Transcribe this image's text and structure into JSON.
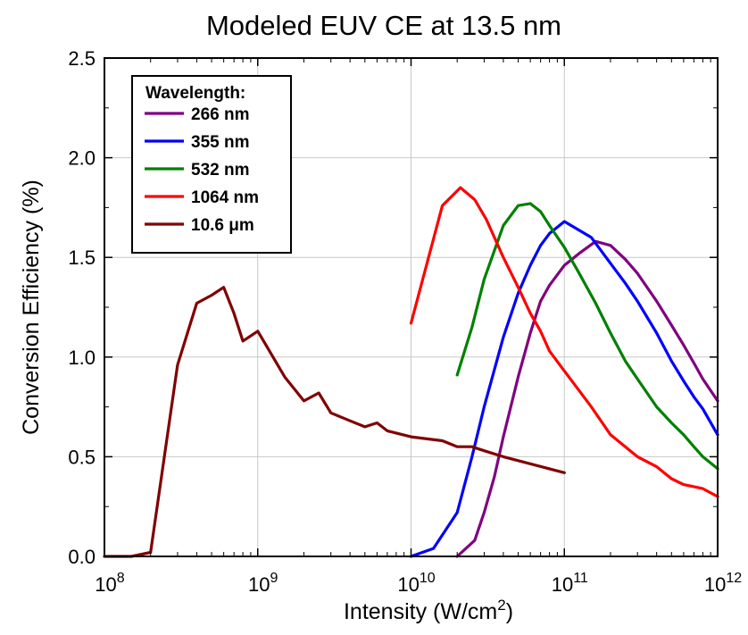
{
  "chart_data": {
    "type": "line",
    "title": "Modeled EUV CE at 13.5 nm",
    "xlabel": "Intensity (W/cm",
    "xlabel_sup": "2",
    "xlabel_end": ")",
    "ylabel": "Conversion Efficiency (%)",
    "x_scale": "log",
    "xlim": [
      100000000.0,
      1000000000000.0
    ],
    "ylim": [
      0.0,
      2.5
    ],
    "grid": true,
    "x_ticks": [
      {
        "base": "10",
        "exp": "8"
      },
      {
        "base": "10",
        "exp": "9"
      },
      {
        "base": "10",
        "exp": "10"
      },
      {
        "base": "10",
        "exp": "11"
      },
      {
        "base": "10",
        "exp": "12"
      }
    ],
    "y_ticks": [
      "0.0",
      "0.5",
      "1.0",
      "1.5",
      "2.0",
      "2.5"
    ],
    "legend": {
      "title": "Wavelength:",
      "placement": "top-left"
    },
    "series": [
      {
        "name": "266 nm",
        "color": "#800080",
        "x": [
          20000000000.0,
          26000000000.0,
          30000000000.0,
          35000000000.0,
          40000000000.0,
          50000000000.0,
          60000000000.0,
          70000000000.0,
          80000000000.0,
          100000000000.0,
          125000000000.0,
          160000000000.0,
          200000000000.0,
          250000000000.0,
          300000000000.0,
          400000000000.0,
          500000000000.0,
          600000000000.0,
          700000000000.0,
          800000000000.0,
          1000000000000.0
        ],
        "y": [
          0.0,
          0.08,
          0.22,
          0.4,
          0.6,
          0.9,
          1.12,
          1.28,
          1.36,
          1.46,
          1.52,
          1.58,
          1.56,
          1.49,
          1.42,
          1.28,
          1.16,
          1.06,
          0.97,
          0.89,
          0.78
        ]
      },
      {
        "name": "355 nm",
        "color": "#0000ff",
        "x": [
          10000000000.0,
          14000000000.0,
          20000000000.0,
          25000000000.0,
          30000000000.0,
          40000000000.0,
          50000000000.0,
          60000000000.0,
          70000000000.0,
          80000000000.0,
          100000000000.0,
          150000000000.0,
          200000000000.0,
          250000000000.0,
          300000000000.0,
          400000000000.0,
          500000000000.0,
          600000000000.0,
          700000000000.0,
          800000000000.0,
          1000000000000.0
        ],
        "y": [
          0.0,
          0.04,
          0.22,
          0.5,
          0.75,
          1.1,
          1.32,
          1.46,
          1.56,
          1.62,
          1.68,
          1.6,
          1.47,
          1.37,
          1.28,
          1.12,
          0.98,
          0.88,
          0.8,
          0.74,
          0.61
        ]
      },
      {
        "name": "532 nm",
        "color": "#008000",
        "x": [
          20000000000.0,
          25000000000.0,
          30000000000.0,
          40000000000.0,
          50000000000.0,
          60000000000.0,
          70000000000.0,
          80000000000.0,
          100000000000.0,
          125000000000.0,
          160000000000.0,
          200000000000.0,
          250000000000.0,
          300000000000.0,
          400000000000.0,
          500000000000.0,
          600000000000.0,
          700000000000.0,
          800000000000.0,
          1000000000000.0
        ],
        "y": [
          0.91,
          1.15,
          1.39,
          1.66,
          1.76,
          1.77,
          1.73,
          1.66,
          1.55,
          1.42,
          1.27,
          1.12,
          0.98,
          0.89,
          0.75,
          0.67,
          0.61,
          0.55,
          0.5,
          0.44
        ]
      },
      {
        "name": "1064 nm",
        "color": "#ff0000",
        "x": [
          10000000000.0,
          16000000000.0,
          21000000000.0,
          26000000000.0,
          31000000000.0,
          40000000000.0,
          50000000000.0,
          60000000000.0,
          70000000000.0,
          80000000000.0,
          100000000000.0,
          150000000000.0,
          200000000000.0,
          300000000000.0,
          400000000000.0,
          500000000000.0,
          600000000000.0,
          700000000000.0,
          800000000000.0,
          1000000000000.0
        ],
        "y": [
          1.17,
          1.76,
          1.85,
          1.79,
          1.69,
          1.5,
          1.35,
          1.22,
          1.13,
          1.03,
          0.93,
          0.75,
          0.61,
          0.5,
          0.45,
          0.39,
          0.36,
          0.35,
          0.34,
          0.3
        ]
      },
      {
        "name": "10.6 μm",
        "color": "#800000",
        "x": [
          100000000.0,
          150000000.0,
          200000000.0,
          300000000.0,
          400000000.0,
          500000000.0,
          600000000.0,
          700000000.0,
          800000000.0,
          1000000000.0,
          1500000000.0,
          2000000000.0,
          2500000000.0,
          3000000000.0,
          4000000000.0,
          5000000000.0,
          6000000000.0,
          7000000000.0,
          10000000000.0,
          16000000000.0,
          20000000000.0,
          25000000000.0,
          30000000000.0,
          40000000000.0,
          100000000000.0
        ],
        "y": [
          0.0,
          0.0,
          0.02,
          0.96,
          1.27,
          1.31,
          1.35,
          1.22,
          1.08,
          1.13,
          0.9,
          0.78,
          0.82,
          0.72,
          0.68,
          0.65,
          0.67,
          0.63,
          0.6,
          0.58,
          0.55,
          0.55,
          0.53,
          0.5,
          0.42
        ]
      }
    ]
  }
}
